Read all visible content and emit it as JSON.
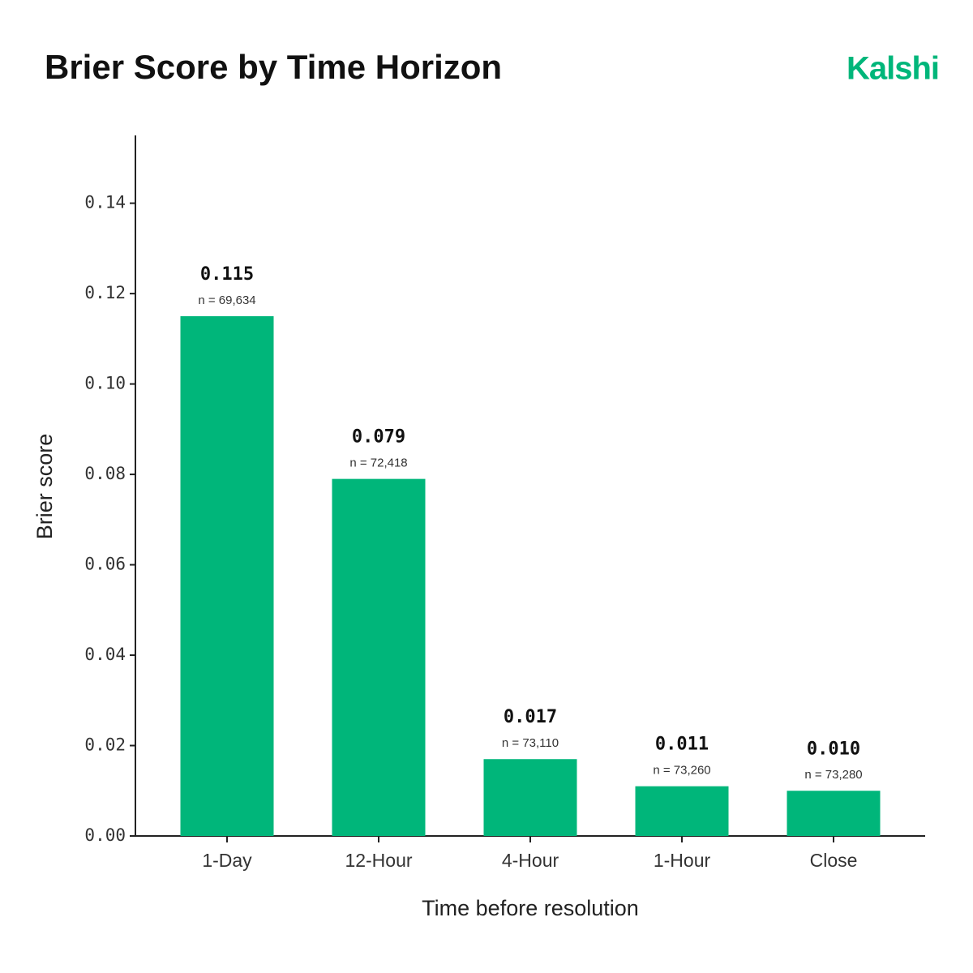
{
  "chart_data": {
    "type": "bar",
    "title": "Brier Score by Time Horizon",
    "brand": "Kalshi",
    "x_label": "Time before resolution",
    "y_label": "Brier score",
    "categories": [
      "1-Day",
      "12-Hour",
      "4-Hour",
      "1-Hour",
      "Close"
    ],
    "values": [
      0.115,
      0.079,
      0.017,
      0.011,
      0.01
    ],
    "value_labels": [
      "0.115",
      "0.079",
      "0.017",
      "0.011",
      "0.010"
    ],
    "n_labels": [
      "n = 69,634",
      "n = 72,418",
      "n = 73,110",
      "n = 73,260",
      "n = 73,280"
    ],
    "color": "#00b67a",
    "ylim": [
      0,
      0.155
    ],
    "yticks": [
      {
        "value": 0,
        "label": "0.00"
      },
      0.02,
      0.04,
      0.06,
      0.08,
      {
        "value": 0.1,
        "label": "0.10"
      },
      0.12,
      0.14
    ],
    "grid": false
  }
}
